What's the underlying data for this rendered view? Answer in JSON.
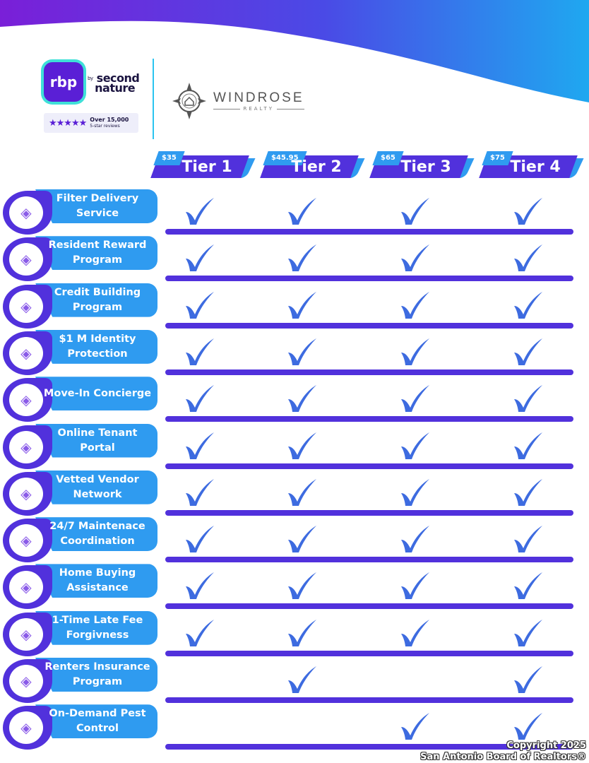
{
  "header": {
    "rbp_logo": "rbp",
    "brand_by": "by",
    "brand_name_1": "second",
    "brand_name_2": "nature",
    "reviews_stars": "★★★★★",
    "reviews_line1": "Over 15,000",
    "reviews_line2": "5-star reviews",
    "partner_name": "WINDROSE",
    "partner_sub": "REALTY"
  },
  "colors": {
    "purple": "#5131dc",
    "blue": "#2f9bf0",
    "check": "#3d6be0"
  },
  "tiers": [
    {
      "name": "Tier 1",
      "price": "$35"
    },
    {
      "name": "Tier 2",
      "price": "$45.95"
    },
    {
      "name": "Tier 3",
      "price": "$65"
    },
    {
      "name": "Tier 4",
      "price": "$75"
    }
  ],
  "features": [
    {
      "label": "Filter Delivery Service",
      "icon": "filter-icon",
      "included": [
        true,
        true,
        true,
        true
      ]
    },
    {
      "label": "Resident Reward Program",
      "icon": "gift-icon",
      "included": [
        true,
        true,
        true,
        true
      ]
    },
    {
      "label": "Credit Building Program",
      "icon": "credit-gauge-icon",
      "included": [
        true,
        true,
        true,
        true
      ]
    },
    {
      "label": "$1 M Identity Protection",
      "icon": "id-card-icon",
      "included": [
        true,
        true,
        true,
        true
      ]
    },
    {
      "label": "Move-In Concierge",
      "icon": "concierge-icon",
      "included": [
        true,
        true,
        true,
        true
      ]
    },
    {
      "label": "Online Tenant Portal",
      "icon": "computer-icon",
      "included": [
        true,
        true,
        true,
        true
      ]
    },
    {
      "label": "Vetted Vendor Network",
      "icon": "thumbs-up-icon",
      "included": [
        true,
        true,
        true,
        true
      ]
    },
    {
      "label": "24/7 Maintenace Coordination",
      "icon": "clock-icon",
      "included": [
        true,
        true,
        true,
        true
      ]
    },
    {
      "label": "Home Buying Assistance",
      "icon": "house-sale-icon",
      "included": [
        true,
        true,
        true,
        true
      ]
    },
    {
      "label": "1-Time Late Fee Forgivness",
      "icon": "no-fee-icon",
      "included": [
        true,
        true,
        true,
        true
      ]
    },
    {
      "label": "Renters Insurance Program",
      "icon": "umbrella-icon",
      "included": [
        false,
        true,
        false,
        true
      ]
    },
    {
      "label": "On-Demand Pest Control",
      "icon": "no-bug-icon",
      "included": [
        false,
        false,
        true,
        true
      ]
    }
  ],
  "footer": {
    "copyright_1": "Copyright 2025",
    "copyright_2": "San Antonio Board of Realtors®"
  }
}
